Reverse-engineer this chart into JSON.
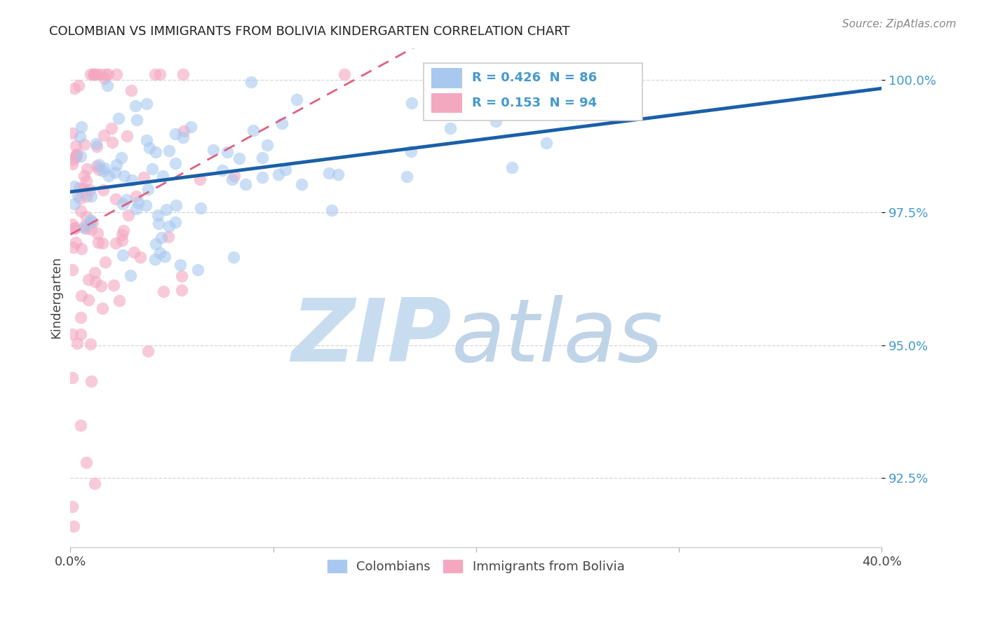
{
  "title": "COLOMBIAN VS IMMIGRANTS FROM BOLIVIA KINDERGARTEN CORRELATION CHART",
  "source": "Source: ZipAtlas.com",
  "ylabel": "Kindergarten",
  "xlim": [
    0.0,
    0.4
  ],
  "ylim": [
    0.912,
    1.006
  ],
  "yticks": [
    0.925,
    0.95,
    0.975,
    1.0
  ],
  "ytick_labels": [
    "92.5%",
    "95.0%",
    "97.5%",
    "100.0%"
  ],
  "xticks": [
    0.0,
    0.1,
    0.2,
    0.3,
    0.4
  ],
  "xtick_labels": [
    "0.0%",
    "",
    "",
    "",
    "40.0%"
  ],
  "legend_blue_label": "Colombians",
  "legend_pink_label": "Immigrants from Bolivia",
  "r_blue": 0.426,
  "n_blue": 86,
  "r_pink": 0.153,
  "n_pink": 94,
  "blue_dot_color": "#A8C8F0",
  "pink_dot_color": "#F4A8C0",
  "trend_blue_color": "#1A5FA8",
  "trend_pink_color": "#E06080",
  "ytick_color": "#4499CC",
  "watermark_zip_color": "#C8DCF0",
  "watermark_atlas_color": "#C0D4E8",
  "background_color": "#FFFFFF"
}
